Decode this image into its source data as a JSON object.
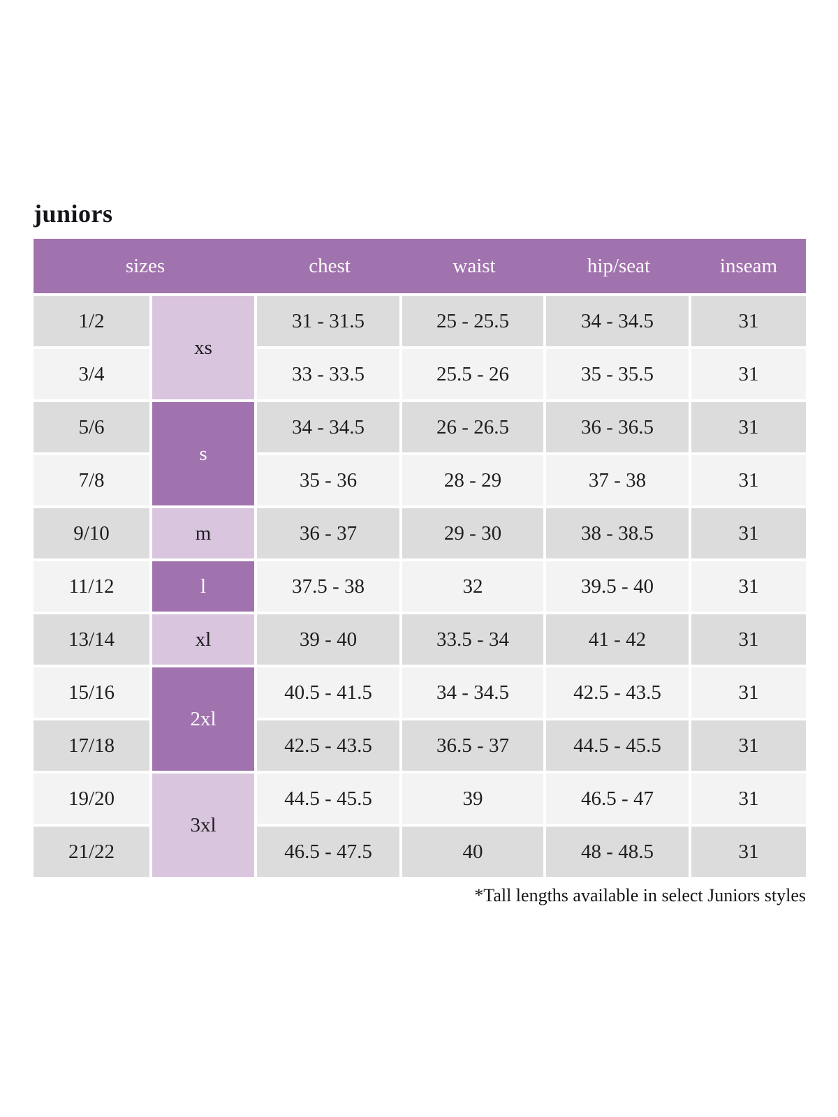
{
  "page": {
    "title": "juniors",
    "footnote": "*Tall lengths available in select Juniors styles"
  },
  "table": {
    "headers": [
      "sizes",
      "chest",
      "waist",
      "hip/seat",
      "inseam"
    ],
    "size_groups": [
      {
        "label": "xs",
        "rows": 2,
        "variant": "light"
      },
      {
        "label": "s",
        "rows": 2,
        "variant": "dark"
      },
      {
        "label": "m",
        "rows": 1,
        "variant": "light"
      },
      {
        "label": "l",
        "rows": 1,
        "variant": "dark"
      },
      {
        "label": "xl",
        "rows": 1,
        "variant": "light"
      },
      {
        "label": "2xl",
        "rows": 2,
        "variant": "dark"
      },
      {
        "label": "3xl",
        "rows": 2,
        "variant": "light"
      }
    ],
    "rows": [
      {
        "size": "1/2",
        "chest": "31 - 31.5",
        "waist": "25 - 25.5",
        "hip_seat": "34 - 34.5",
        "inseam": "31"
      },
      {
        "size": "3/4",
        "chest": "33 - 33.5",
        "waist": "25.5 - 26",
        "hip_seat": "35 - 35.5",
        "inseam": "31"
      },
      {
        "size": "5/6",
        "chest": "34 - 34.5",
        "waist": "26 - 26.5",
        "hip_seat": "36 - 36.5",
        "inseam": "31"
      },
      {
        "size": "7/8",
        "chest": "35 - 36",
        "waist": "28 - 29",
        "hip_seat": "37 - 38",
        "inseam": "31"
      },
      {
        "size": "9/10",
        "chest": "36 - 37",
        "waist": "29 - 30",
        "hip_seat": "38 - 38.5",
        "inseam": "31"
      },
      {
        "size": "11/12",
        "chest": "37.5 - 38",
        "waist": "32",
        "hip_seat": "39.5 - 40",
        "inseam": "31"
      },
      {
        "size": "13/14",
        "chest": "39 - 40",
        "waist": "33.5 - 34",
        "hip_seat": "41 - 42",
        "inseam": "31"
      },
      {
        "size": "15/16",
        "chest": "40.5 - 41.5",
        "waist": "34 - 34.5",
        "hip_seat": "42.5 - 43.5",
        "inseam": "31"
      },
      {
        "size": "17/18",
        "chest": "42.5 - 43.5",
        "waist": "36.5 - 37",
        "hip_seat": "44.5 - 45.5",
        "inseam": "31"
      },
      {
        "size": "19/20",
        "chest": "44.5 - 45.5",
        "waist": "39",
        "hip_seat": "46.5 - 47",
        "inseam": "31"
      },
      {
        "size": "21/22",
        "chest": "46.5 - 47.5",
        "waist": "40",
        "hip_seat": "48 - 48.5",
        "inseam": "31"
      }
    ]
  },
  "colors": {
    "header_purple": "#a173ae",
    "dark_purple": "#a173ae",
    "light_lavender": "#d9c5de",
    "row_gray": "#dcdcdc",
    "row_light": "#f4f3f4",
    "text_dark": "#1f1d20",
    "text_white": "#fdfbfd"
  }
}
